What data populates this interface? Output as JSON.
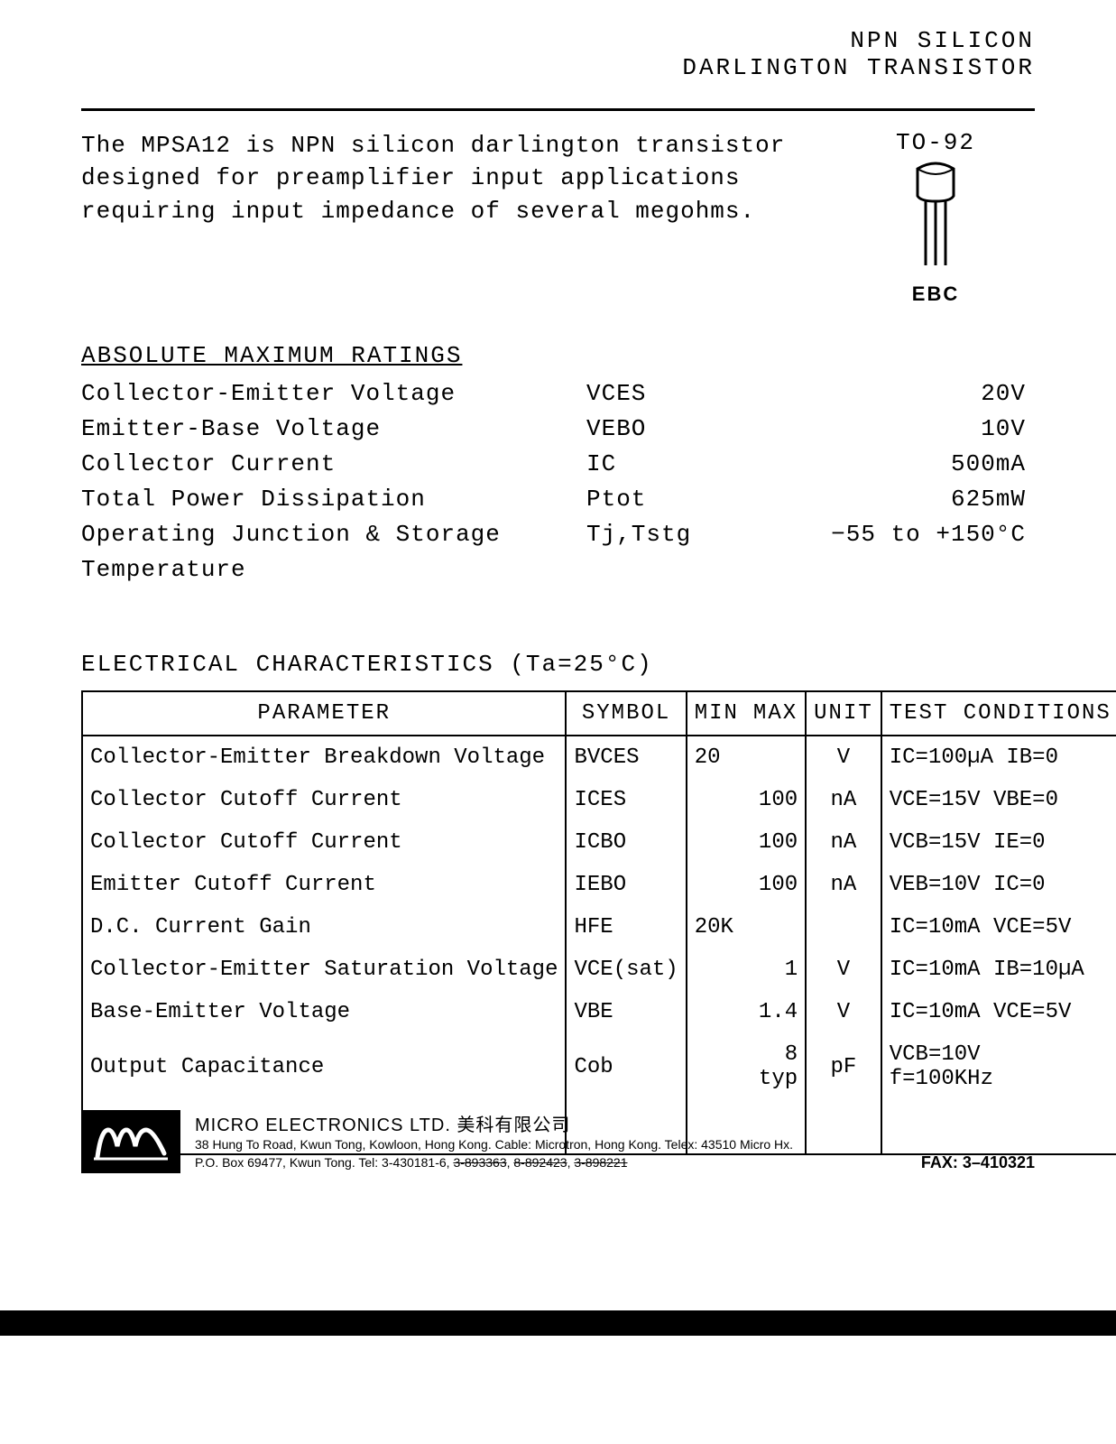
{
  "header": {
    "line1": "NPN SILICON",
    "line2": "DARLINGTON TRANSISTOR"
  },
  "intro": {
    "text": "The MPSA12 is NPN silicon darlington transistor designed for preamplifier input applications requiring input impedance of several megohms."
  },
  "package": {
    "label_top": "TO-92",
    "pin_label": "EBC"
  },
  "ratings": {
    "title": "ABSOLUTE MAXIMUM RATINGS",
    "rows": [
      {
        "label": "Collector-Emitter Voltage",
        "symbol": "VCES",
        "value": "20V"
      },
      {
        "label": "Emitter-Base Voltage",
        "symbol": "VEBO",
        "value": "10V"
      },
      {
        "label": "Collector Current",
        "symbol": "IC",
        "value": "500mA"
      },
      {
        "label": "Total Power Dissipation",
        "symbol": "Ptot",
        "value": "625mW"
      },
      {
        "label": "Operating Junction & Storage Temperature",
        "symbol": "Tj,Tstg",
        "value": "−55 to +150°C"
      }
    ]
  },
  "ec": {
    "title": "ELECTRICAL CHARACTERISTICS (Ta=25°C)",
    "columns": {
      "parameter": "PARAMETER",
      "symbol": "SYMBOL",
      "min": "MIN",
      "max": "MAX",
      "unit": "UNIT",
      "conditions": "TEST CONDITIONS"
    },
    "rows": [
      {
        "param": "Collector-Emitter Breakdown Voltage",
        "symbol": "BVCES",
        "min": "20",
        "max": "",
        "unit": "V",
        "cond": "IC=100µA  IB=0"
      },
      {
        "param": "Collector Cutoff Current",
        "symbol": "ICES",
        "min": "",
        "max": "100",
        "unit": "nA",
        "cond": "VCE=15V  VBE=0"
      },
      {
        "param": "Collector Cutoff Current",
        "symbol": "ICBO",
        "min": "",
        "max": "100",
        "unit": "nA",
        "cond": "VCB=15V  IE=0"
      },
      {
        "param": "Emitter Cutoff Current",
        "symbol": "IEBO",
        "min": "",
        "max": "100",
        "unit": "nA",
        "cond": "VEB=10V  IC=0"
      },
      {
        "param": "D.C. Current Gain",
        "symbol": "HFE",
        "min": "20K",
        "max": "",
        "unit": "",
        "cond": "IC=10mA VCE=5V"
      },
      {
        "param": "Collector-Emitter Saturation Voltage",
        "symbol": "VCE(sat)",
        "min": "",
        "max": "1",
        "unit": "V",
        "cond": "IC=10mA IB=10µA"
      },
      {
        "param": "Base-Emitter Voltage",
        "symbol": "VBE",
        "min": "",
        "max": "1.4",
        "unit": "V",
        "cond": "IC=10mA VCE=5V"
      },
      {
        "param": "Output Capacitance",
        "symbol": "Cob",
        "min": "",
        "max": "8 typ",
        "unit": "pF",
        "cond": "VCB=10V\nf=100KHz"
      }
    ]
  },
  "footer": {
    "company": "MICRO ELECTRONICS LTD.  美科有限公司",
    "address_line1": "38 Hung To Road, Kwun Tong, Kowloon, Hong Kong. Cable: Microtron, Hong Kong. Telex: 43510 Micro Hx.",
    "address_line2_prefix": "P.O. Box 69477, Kwun Tong. Tel: 3-430181-6, ",
    "struck1": "3-893363",
    "struck2": "8-892423",
    "struck3": "3-898221",
    "fax": "FAX: 3–410321"
  },
  "colors": {
    "text": "#000000",
    "background": "#ffffff",
    "rule": "#000000"
  }
}
